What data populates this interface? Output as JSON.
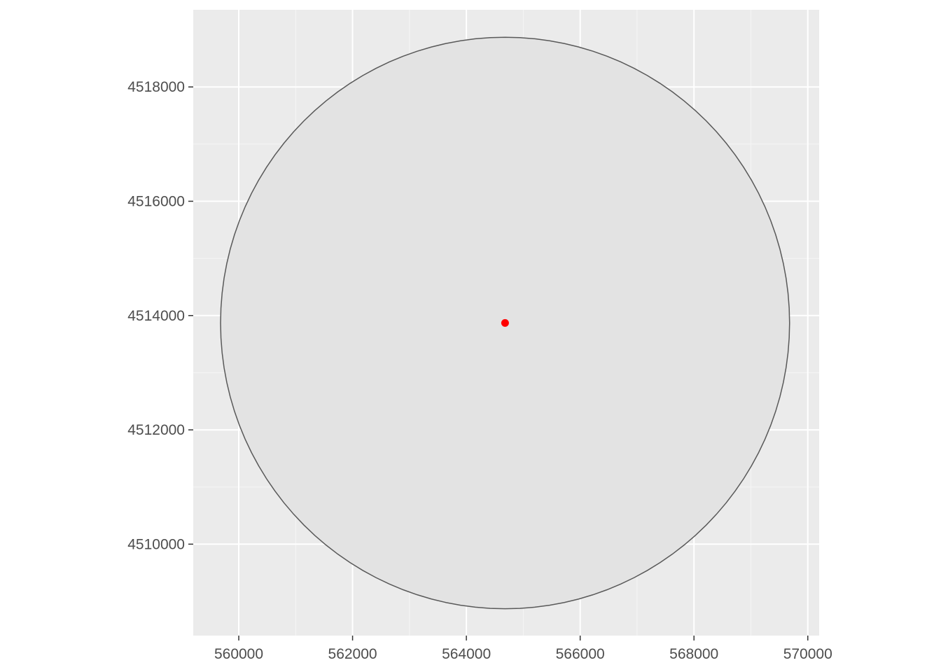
{
  "chart_data": {
    "type": "scatter",
    "title": "",
    "xlabel": "",
    "ylabel": "",
    "xlim": [
      559200,
      570200
    ],
    "ylim": [
      4508400,
      4519350
    ],
    "x_ticks": [
      560000,
      562000,
      564000,
      566000,
      568000,
      570000
    ],
    "y_ticks": [
      4510000,
      4512000,
      4514000,
      4516000,
      4518000
    ],
    "x_minor_ticks": [
      561000,
      563000,
      565000,
      567000,
      569000
    ],
    "y_minor_ticks": [
      4511000,
      4513000,
      4515000,
      4517000
    ],
    "grid": true,
    "panel_background": "#ebebeb",
    "buffer_polygon": {
      "shape": "circle",
      "center": [
        564680,
        4513870
      ],
      "radius": 5000,
      "fill": "#e3e3e3",
      "outline": "#595959"
    },
    "points": [
      {
        "x": 564680,
        "y": 4513870,
        "color": "#ff0000"
      }
    ]
  }
}
